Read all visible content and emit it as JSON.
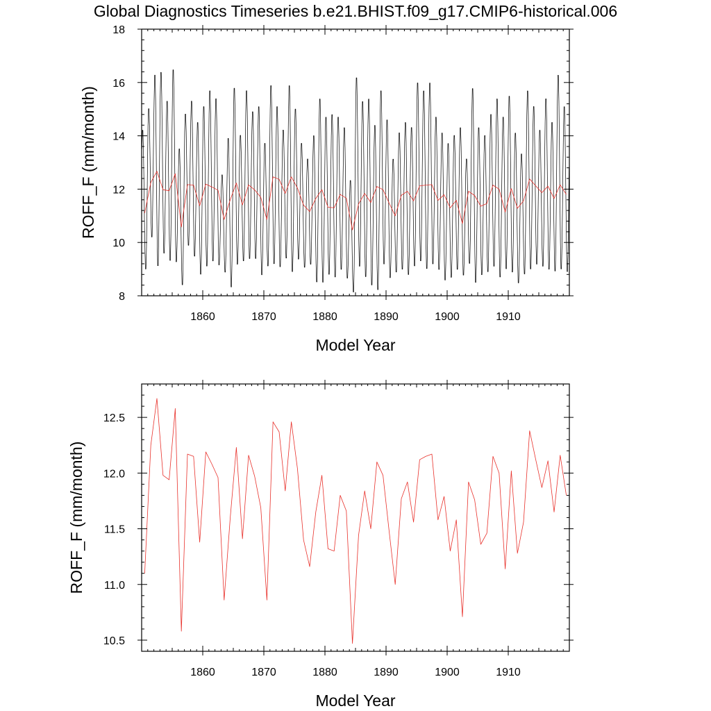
{
  "title": "Global Diagnostics Timeseries b.e21.BHIST.f09_g17.CMIP6-historical.006",
  "chart_data": [
    {
      "type": "line",
      "xlabel": "Model Year",
      "ylabel": "ROFF_F (mm/month)",
      "xlim": [
        1850,
        1920
      ],
      "ylim": [
        8,
        18
      ],
      "x_ticks": [
        1860,
        1870,
        1880,
        1890,
        1900,
        1910
      ],
      "x_tick_labels": [
        "1860",
        "1870",
        "1880",
        "1890",
        "1900",
        "1910"
      ],
      "y_ticks": [
        8,
        10,
        12,
        14,
        16,
        18
      ],
      "y_tick_labels": [
        "8",
        "10",
        "12",
        "14",
        "16",
        "18"
      ],
      "series": [
        {
          "kind": "monthly",
          "color": "#000000",
          "x_start": 1850.04,
          "x_step": 0.0833333,
          "annual_peaks": [
            14.3,
            15.1,
            16.4,
            16.5,
            15.4,
            16.6,
            13.6,
            14.9,
            15.4,
            14.6,
            15.2,
            15.8,
            15.5,
            12.6,
            14.0,
            15.9,
            14.1,
            15.8,
            15.0,
            15.2,
            13.8,
            16.0,
            15.2,
            14.3,
            16.0,
            15.1,
            13.8,
            13.2,
            14.1,
            15.5,
            14.8,
            14.9,
            14.8,
            14.4,
            12.4,
            16.3,
            15.4,
            15.5,
            14.5,
            15.8,
            14.7,
            13.2,
            14.2,
            14.6,
            14.4,
            16.1,
            15.8,
            16.1,
            14.8,
            14.2,
            13.8,
            14.1,
            14.4,
            13.2,
            15.9,
            14.4,
            14.1,
            14.9,
            15.5,
            14.8,
            15.6,
            14.2,
            13.4,
            15.8,
            15.2,
            14.3,
            15.5,
            14.6,
            16.4,
            15.2
          ],
          "annual_troughs": [
            8.9,
            10.1,
            9.0,
            9.5,
            9.2,
            9.2,
            8.3,
            9.8,
            9.4,
            8.7,
            9.0,
            9.2,
            9.1,
            8.8,
            8.2,
            9.1,
            9.2,
            9.3,
            9.3,
            8.7,
            9.0,
            9.1,
            9.0,
            9.3,
            8.8,
            9.3,
            9.0,
            9.1,
            8.4,
            8.4,
            8.7,
            8.6,
            8.9,
            8.6,
            8.0,
            9.0,
            8.6,
            8.3,
            8.1,
            9.1,
            8.6,
            8.8,
            8.9,
            8.7,
            9.0,
            9.2,
            8.9,
            9.1,
            8.9,
            8.5,
            8.6,
            8.9,
            8.7,
            9.1,
            8.4,
            8.7,
            8.8,
            9.0,
            8.6,
            8.9,
            8.8,
            8.4,
            8.7,
            8.9,
            9.1,
            9.0,
            8.9,
            8.8,
            8.9,
            8.8
          ]
        },
        {
          "kind": "annual",
          "color": "#e8302a",
          "x": [
            1850.5,
            1851.5,
            1852.5,
            1853.5,
            1854.5,
            1855.5,
            1856.5,
            1857.5,
            1858.5,
            1859.5,
            1860.5,
            1861.5,
            1862.5,
            1863.5,
            1864.5,
            1865.5,
            1866.5,
            1867.5,
            1868.5,
            1869.5,
            1870.5,
            1871.5,
            1872.5,
            1873.5,
            1874.5,
            1875.5,
            1876.5,
            1877.5,
            1878.5,
            1879.5,
            1880.5,
            1881.5,
            1882.5,
            1883.5,
            1884.5,
            1885.5,
            1886.5,
            1887.5,
            1888.5,
            1889.5,
            1890.5,
            1891.5,
            1892.5,
            1893.5,
            1894.5,
            1895.5,
            1896.5,
            1897.5,
            1898.5,
            1899.5,
            1900.5,
            1901.5,
            1902.5,
            1903.5,
            1904.5,
            1905.5,
            1906.5,
            1907.5,
            1908.5,
            1909.5,
            1910.5,
            1911.5,
            1912.5,
            1913.5,
            1914.5,
            1915.5,
            1916.5,
            1917.5,
            1918.5,
            1919.5
          ],
          "values": [
            11.1,
            12.25,
            12.67,
            11.98,
            11.94,
            12.58,
            10.58,
            12.17,
            12.15,
            11.38,
            12.19,
            12.08,
            11.96,
            10.86,
            11.6,
            12.23,
            11.41,
            12.16,
            11.97,
            11.69,
            10.86,
            12.46,
            12.37,
            11.84,
            12.46,
            12.04,
            11.4,
            11.16,
            11.65,
            11.98,
            11.32,
            11.3,
            11.8,
            11.66,
            10.47,
            11.44,
            11.84,
            11.5,
            12.1,
            11.98,
            11.48,
            11.0,
            11.77,
            11.92,
            11.56,
            12.12,
            12.15,
            12.17,
            11.58,
            11.79,
            11.3,
            11.58,
            10.71,
            11.92,
            11.76,
            11.36,
            11.46,
            12.15,
            12.0,
            11.14,
            12.02,
            11.28,
            11.56,
            12.38,
            12.12,
            11.87,
            12.11,
            11.65,
            12.16,
            11.8
          ]
        }
      ]
    },
    {
      "type": "line",
      "xlabel": "Model Year",
      "ylabel": "ROFF_F (mm/month)",
      "xlim": [
        1850,
        1920
      ],
      "ylim": [
        10.4,
        12.8
      ],
      "x_ticks": [
        1860,
        1870,
        1880,
        1890,
        1900,
        1910
      ],
      "x_tick_labels": [
        "1860",
        "1870",
        "1880",
        "1890",
        "1900",
        "1910"
      ],
      "y_ticks": [
        10.5,
        11.0,
        11.5,
        12.0,
        12.5
      ],
      "y_tick_labels": [
        "10.5",
        "11.0",
        "11.5",
        "12.0",
        "12.5"
      ],
      "series": [
        {
          "kind": "annual",
          "color": "#e8302a",
          "x": [
            1850.5,
            1851.5,
            1852.5,
            1853.5,
            1854.5,
            1855.5,
            1856.5,
            1857.5,
            1858.5,
            1859.5,
            1860.5,
            1861.5,
            1862.5,
            1863.5,
            1864.5,
            1865.5,
            1866.5,
            1867.5,
            1868.5,
            1869.5,
            1870.5,
            1871.5,
            1872.5,
            1873.5,
            1874.5,
            1875.5,
            1876.5,
            1877.5,
            1878.5,
            1879.5,
            1880.5,
            1881.5,
            1882.5,
            1883.5,
            1884.5,
            1885.5,
            1886.5,
            1887.5,
            1888.5,
            1889.5,
            1890.5,
            1891.5,
            1892.5,
            1893.5,
            1894.5,
            1895.5,
            1896.5,
            1897.5,
            1898.5,
            1899.5,
            1900.5,
            1901.5,
            1902.5,
            1903.5,
            1904.5,
            1905.5,
            1906.5,
            1907.5,
            1908.5,
            1909.5,
            1910.5,
            1911.5,
            1912.5,
            1913.5,
            1914.5,
            1915.5,
            1916.5,
            1917.5,
            1918.5,
            1919.5
          ],
          "values": [
            11.1,
            12.25,
            12.67,
            11.98,
            11.94,
            12.58,
            10.58,
            12.17,
            12.15,
            11.38,
            12.19,
            12.08,
            11.96,
            10.86,
            11.6,
            12.23,
            11.41,
            12.16,
            11.97,
            11.69,
            10.86,
            12.46,
            12.37,
            11.84,
            12.46,
            12.04,
            11.4,
            11.16,
            11.65,
            11.98,
            11.32,
            11.3,
            11.8,
            11.66,
            10.47,
            11.44,
            11.84,
            11.5,
            12.1,
            11.98,
            11.48,
            11.0,
            11.77,
            11.92,
            11.56,
            12.12,
            12.15,
            12.17,
            11.58,
            11.79,
            11.3,
            11.58,
            10.71,
            11.92,
            11.76,
            11.36,
            11.46,
            12.15,
            12.0,
            11.14,
            12.02,
            11.28,
            11.56,
            12.38,
            12.12,
            11.87,
            12.11,
            11.65,
            12.16,
            11.8
          ]
        }
      ]
    }
  ]
}
